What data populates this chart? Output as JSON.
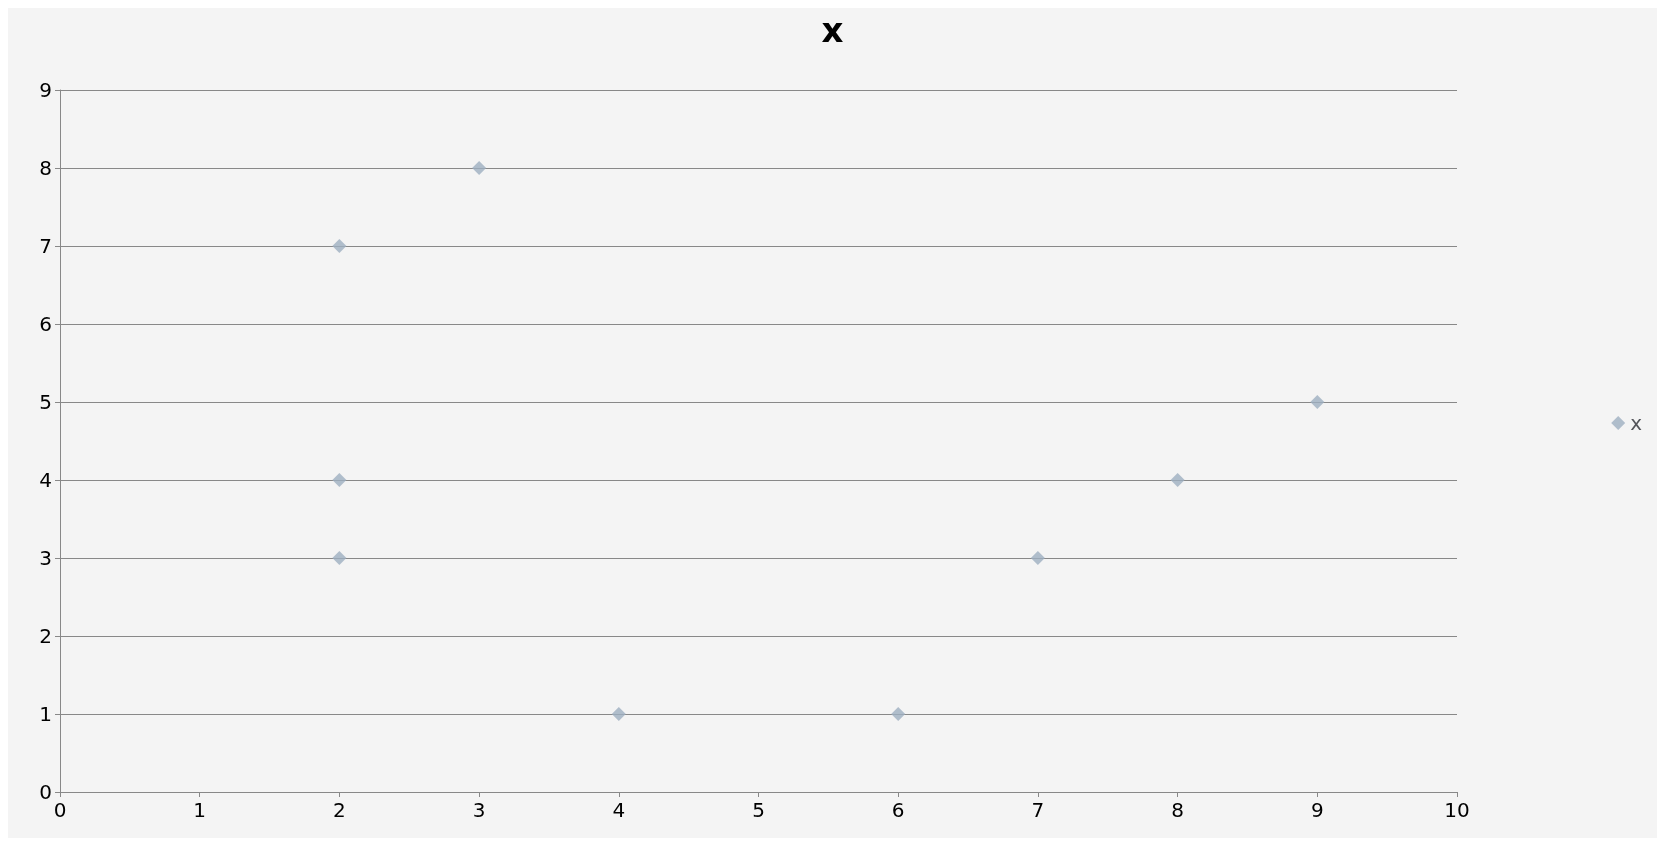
{
  "chart_data": {
    "type": "scatter",
    "title": "x",
    "x": [
      3,
      2,
      2,
      2,
      4,
      6,
      7,
      8,
      9
    ],
    "series": [
      {
        "name": "x",
        "color": "#9eafc0",
        "values": [
          8,
          7,
          4,
          3,
          1,
          1,
          3,
          4,
          5
        ]
      }
    ],
    "xlim": [
      0,
      10
    ],
    "xticks": [
      0,
      1,
      2,
      3,
      4,
      5,
      6,
      7,
      8,
      9,
      10
    ],
    "ylim": [
      0,
      9
    ],
    "yticks": [
      0,
      1,
      2,
      3,
      4,
      5,
      6,
      7,
      8,
      9
    ],
    "grid": "y",
    "legend": "right",
    "marker": "diamond"
  }
}
